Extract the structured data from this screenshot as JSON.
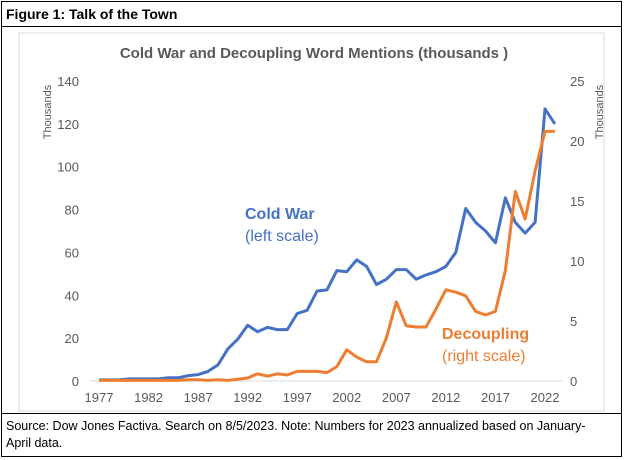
{
  "figure_title": "Figure 1: Talk of the Town",
  "source_note": "Source: Dow Jones Factiva.  Search on 8/5/2023.  Note: Numbers for 2023 annualized based on January-April data.",
  "colors": {
    "cold_war": "#4472C4",
    "decoupling": "#ED7D31"
  },
  "chart_data": {
    "type": "line",
    "title": "Cold War and Decoupling Word Mentions (thousands )",
    "ylabel_left": "Thousands",
    "ylabel_right": "Thousands",
    "ylim_left": [
      0,
      140
    ],
    "ylim_right": [
      0,
      25
    ],
    "yticks_left": [
      "0",
      "20",
      "40",
      "60",
      "80",
      "100",
      "120",
      "140"
    ],
    "yticks_right": [
      "0",
      "5",
      "10",
      "15",
      "20",
      "25"
    ],
    "xticks": [
      "1977",
      "1982",
      "1987",
      "1992",
      "1997",
      "2002",
      "2007",
      "2012",
      "2017",
      "2022"
    ],
    "x": [
      1977,
      1978,
      1979,
      1980,
      1981,
      1982,
      1983,
      1984,
      1985,
      1986,
      1987,
      1988,
      1989,
      1990,
      1991,
      1992,
      1993,
      1994,
      1995,
      1996,
      1997,
      1998,
      1999,
      2000,
      2001,
      2002,
      2003,
      2004,
      2005,
      2006,
      2007,
      2008,
      2009,
      2010,
      2011,
      2012,
      2013,
      2014,
      2015,
      2016,
      2017,
      2018,
      2019,
      2020,
      2021,
      2022,
      2023
    ],
    "series": [
      {
        "name": "Cold War",
        "label": "Cold War",
        "sublabel": "(left scale)",
        "axis": "left",
        "values": [
          0.5,
          0.5,
          0.5,
          1,
          1,
          1,
          1,
          1.5,
          1.5,
          2.5,
          3,
          4.5,
          7.5,
          15,
          19.5,
          26,
          23,
          25,
          24,
          24,
          31.5,
          33,
          42,
          42.5,
          51.5,
          51,
          56.5,
          53.5,
          45,
          47.5,
          52,
          52,
          47.5,
          49.5,
          51,
          53.5,
          60,
          80.5,
          74,
          70,
          64.5,
          85.5,
          74,
          69,
          74,
          127,
          120
        ]
      },
      {
        "name": "Decoupling",
        "label": "Decoupling",
        "sublabel": "(right scale)",
        "axis": "right",
        "values": [
          0.05,
          0.05,
          0.05,
          0.05,
          0.05,
          0.05,
          0.05,
          0.05,
          0.05,
          0.1,
          0.1,
          0.05,
          0.1,
          0.05,
          0.15,
          0.25,
          0.6,
          0.4,
          0.6,
          0.5,
          0.8,
          0.8,
          0.8,
          0.7,
          1.2,
          2.6,
          2.0,
          1.6,
          1.6,
          3.6,
          6.6,
          4.6,
          4.5,
          4.5,
          6,
          7.6,
          7.4,
          7.1,
          5.8,
          5.5,
          5.8,
          9.2,
          15.8,
          13.5,
          17.5,
          20.8,
          20.8
        ]
      }
    ]
  }
}
